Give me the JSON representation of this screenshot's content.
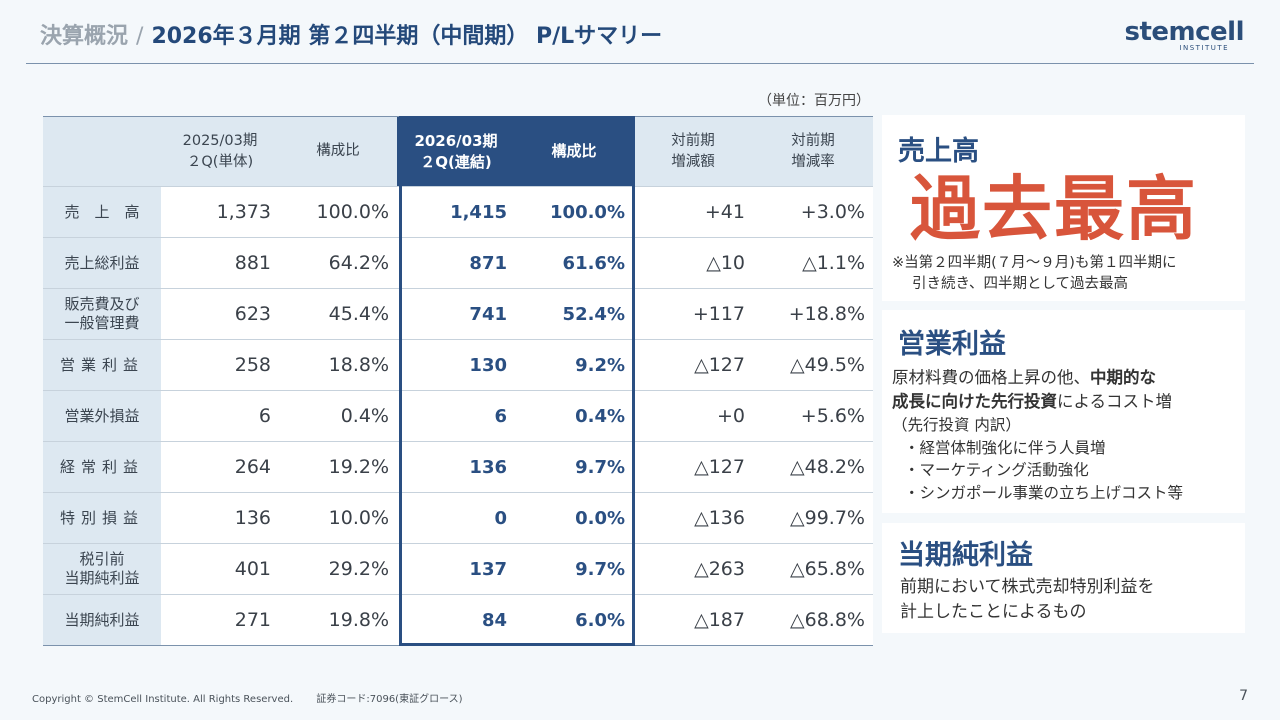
{
  "header": {
    "crumb": "決算概況",
    "separator": "/",
    "title": "2026年３月期 第２四半期（中間期） P/Lサマリー"
  },
  "logo": {
    "name": "stemcell",
    "sub": "INSTITUTE"
  },
  "unit": "（単位：百万円）",
  "table": {
    "headers": [
      "",
      "2025/03期\n２Q(単体)",
      "構成比",
      "2026/03期\n２Q(連結)",
      "構成比",
      "対前期\n増減額",
      "対前期\n増減率"
    ],
    "rows": [
      {
        "label": "売　上　高",
        "values": [
          "1,373",
          "100.0%",
          "1,415",
          "100.0%",
          "+41",
          "+3.0%"
        ]
      },
      {
        "label": "売上総利益",
        "values": [
          "881",
          "64.2%",
          "871",
          "61.6%",
          "△10",
          "△1.1%"
        ]
      },
      {
        "label": "販売費及び\n一般管理費",
        "values": [
          "623",
          "45.4%",
          "741",
          "52.4%",
          "+117",
          "+18.8%"
        ]
      },
      {
        "label": "営業利益",
        "values": [
          "258",
          "18.8%",
          "130",
          "9.2%",
          "△127",
          "△49.5%"
        ]
      },
      {
        "label": "営業外損益",
        "values": [
          "6",
          "0.4%",
          "6",
          "0.4%",
          "+0",
          "+5.6%"
        ]
      },
      {
        "label": "経常利益",
        "values": [
          "264",
          "19.2%",
          "136",
          "9.7%",
          "△127",
          "△48.2%"
        ]
      },
      {
        "label": "特別損益",
        "values": [
          "136",
          "10.0%",
          "0",
          "0.0%",
          "△136",
          "△99.7%"
        ]
      },
      {
        "label": "税引前\n当期純利益",
        "values": [
          "401",
          "29.2%",
          "137",
          "9.7%",
          "△263",
          "△65.8%"
        ]
      },
      {
        "label": "当期純利益",
        "values": [
          "271",
          "19.8%",
          "84",
          "6.0%",
          "△187",
          "△68.8%"
        ]
      }
    ]
  },
  "cards": {
    "sales": {
      "title": "売上高",
      "highlight": "過去最高",
      "note_line1": "※当第２四半期(７月～９月)も第１四半期に",
      "note_line2": "引き続き、四半期として過去最高"
    },
    "operating": {
      "title": "営業利益",
      "text_a": "原材料費の価格上昇の他、",
      "text_b": "中期的な",
      "text_c": "成長に向けた先行投資",
      "text_d": "によるコスト増",
      "sub": "（先行投資 内訳）",
      "bullets": [
        "・経営体制強化に伴う人員増",
        "・マーケティング活動強化",
        "・シンガポール事業の立ち上げコスト等"
      ]
    },
    "net": {
      "title": "当期純利益",
      "line1": "前期において株式売却特別利益を",
      "line2": "計上したことによるもの"
    }
  },
  "footer": {
    "copyright": "Copyright © StemCell Institute. All Rights Reserved.",
    "code": "証券コード:7096(東証グロース)",
    "page": "7"
  },
  "colors": {
    "accent": "#2a4f82",
    "highlight": "#d8553b",
    "header_bg": "#dde8f1"
  }
}
